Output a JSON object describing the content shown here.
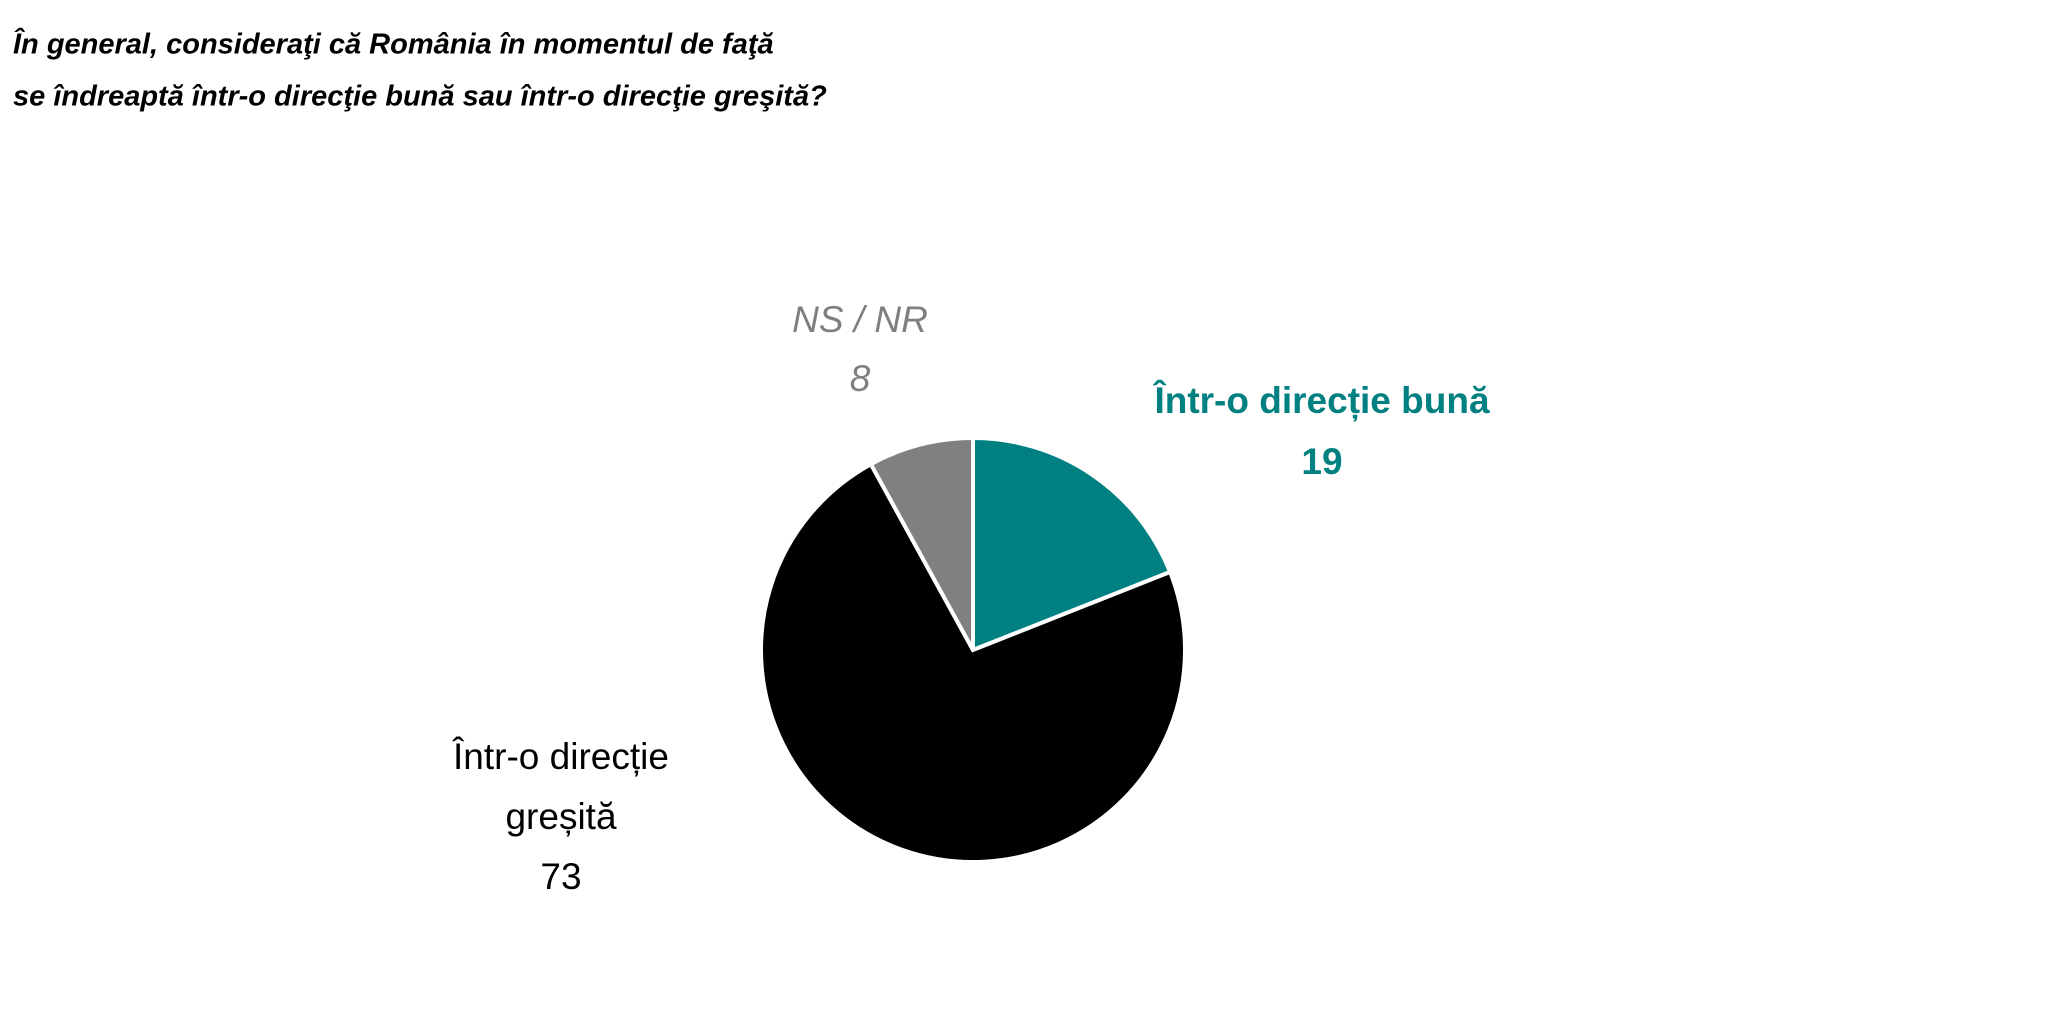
{
  "chart_data": {
    "type": "pie",
    "title": [
      "În general, consideraţi că România în momentul de faţă",
      "se îndreaptă într-o direcţie bună sau într-o direcţie greşită?"
    ],
    "categories": [
      "Într-o direcție bună",
      "Într-o direcție greșită",
      "NS / NR"
    ],
    "values": [
      19,
      73,
      8
    ],
    "colors": [
      "#008080",
      "#000000",
      "#808080"
    ]
  }
}
